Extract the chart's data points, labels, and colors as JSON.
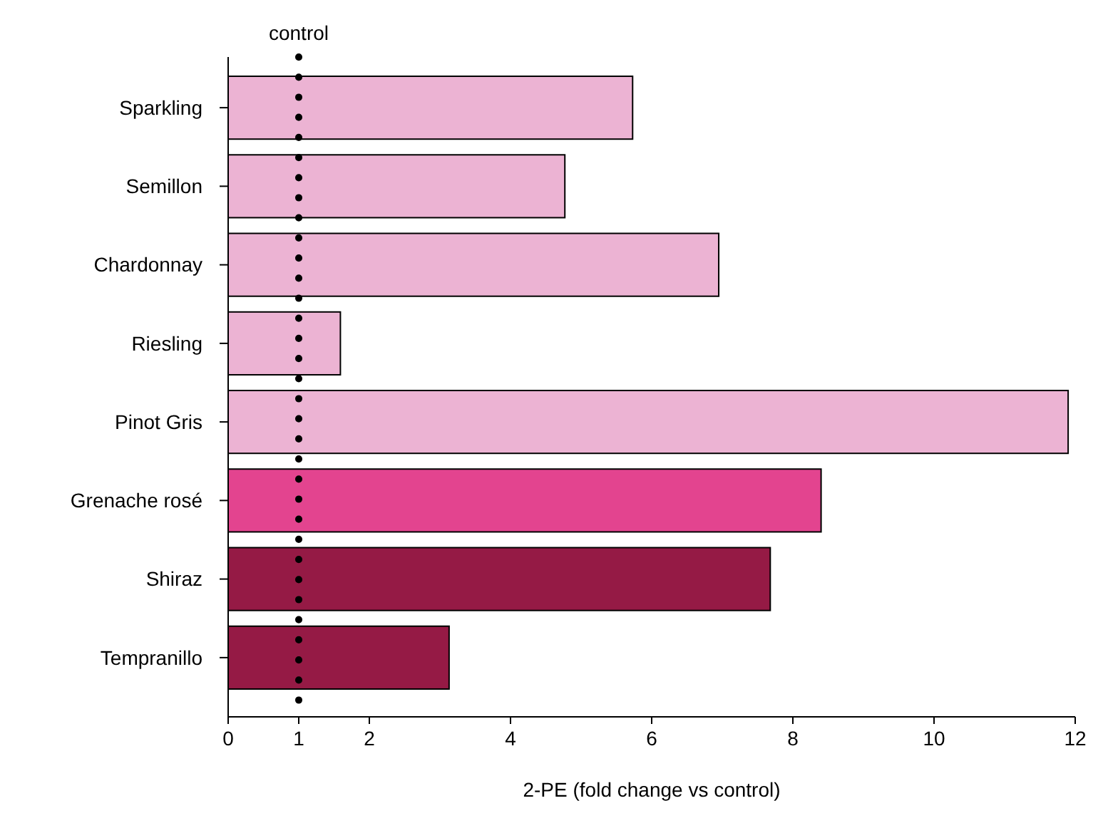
{
  "chart_data": {
    "type": "bar",
    "orientation": "horizontal",
    "xlabel": "2-PE (fold change vs control)",
    "categories": [
      "Sparkling",
      "Semillon",
      "Chardonnay",
      "Riesling",
      "Pinot Gris",
      "Grenache rosé",
      "Shiraz",
      "Tempranillo"
    ],
    "values": [
      5.73,
      4.77,
      6.95,
      1.59,
      11.9,
      8.4,
      7.68,
      3.13
    ],
    "colors": [
      "#ecb3d3",
      "#ecb3d3",
      "#ecb3d3",
      "#ecb3d3",
      "#ecb3d3",
      "#e3448f",
      "#951a45",
      "#951a45"
    ],
    "xlim": [
      0,
      12
    ],
    "xticks": [
      0,
      1,
      2,
      4,
      6,
      8,
      10,
      12
    ],
    "ref_lines": [
      {
        "axis": "x",
        "value": 1,
        "label": "control",
        "color": "#000000",
        "line_style": "dotted"
      }
    ],
    "grid": false
  }
}
